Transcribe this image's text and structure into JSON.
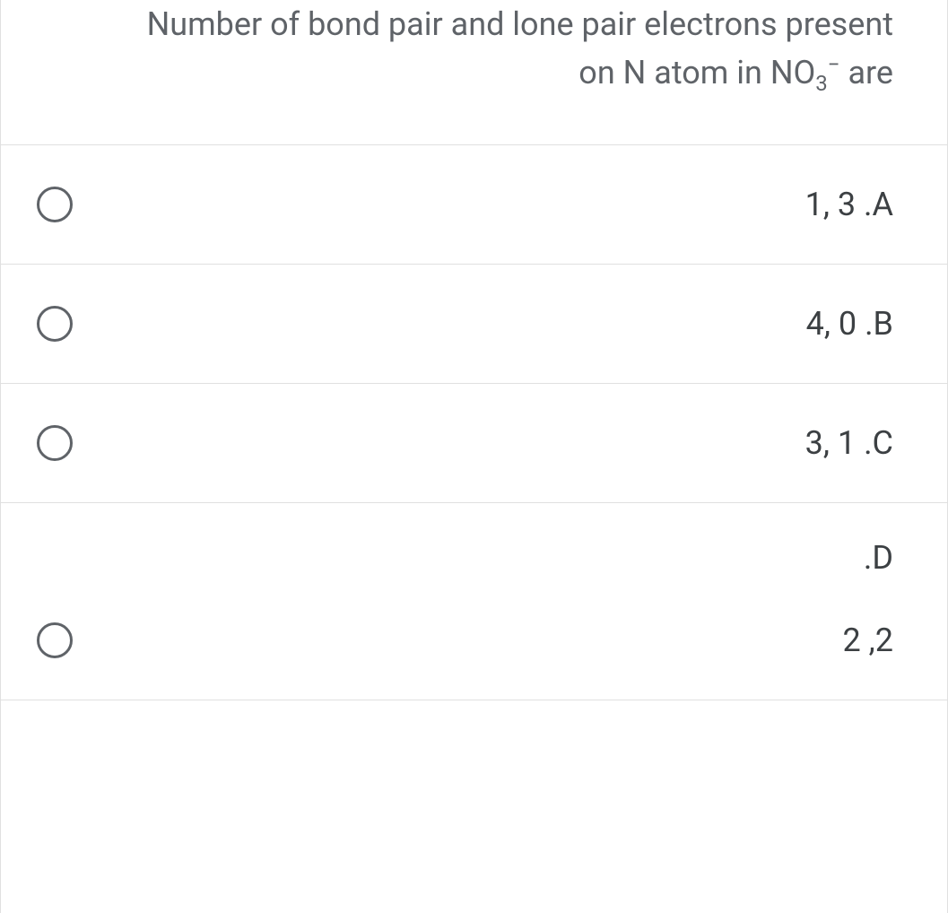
{
  "question": {
    "line1": "Number of bond pair and lone pair electrons present",
    "line2_prefix": "on N atom in NO",
    "line2_sub": "3",
    "line2_sup": "−",
    "line2_suffix": " are"
  },
  "options": {
    "a": {
      "label": "1, 3  .A",
      "letter": "A"
    },
    "b": {
      "label": "4, 0  .B",
      "letter": "B"
    },
    "c": {
      "label": "3, 1  .C",
      "letter": "C"
    },
    "d": {
      "letter": ".D",
      "value": "2 ,2"
    }
  },
  "colors": {
    "question_text": "#5f6368",
    "option_text": "#3c4043",
    "border": "#e0e0e0",
    "radio_border": "#5f6368",
    "background": "#ffffff",
    "page_background": "#f0f0f0"
  },
  "typography": {
    "question_fontsize": 36,
    "option_fontsize": 36,
    "sub_fontsize": 24
  }
}
